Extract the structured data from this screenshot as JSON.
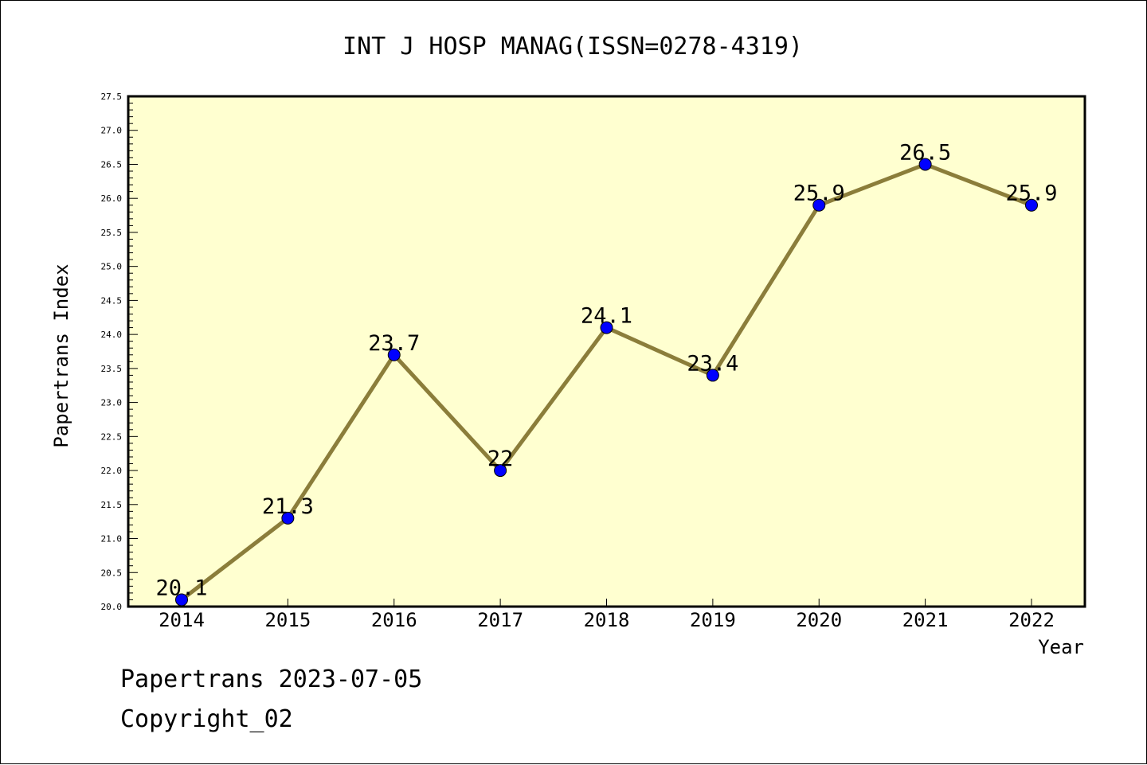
{
  "chart_data": {
    "type": "line",
    "title": "INT J HOSP MANAG(ISSN=0278-4319)",
    "xlabel": "Year",
    "ylabel": "Papertrans Index",
    "categories": [
      "2014",
      "2015",
      "2016",
      "2017",
      "2018",
      "2019",
      "2020",
      "2021",
      "2022"
    ],
    "series": [
      {
        "values": [
          20.1,
          21.3,
          23.7,
          22,
          24.1,
          23.4,
          25.9,
          26.5,
          25.9
        ]
      }
    ],
    "data_labels": [
      "20.1",
      "21.3",
      "23.7",
      "22",
      "24.1",
      "23.4",
      "25.9",
      "26.5",
      "25.9"
    ],
    "ylim": [
      20.0,
      27.5
    ],
    "yticks": [
      "20.0",
      "20.5",
      "21.0",
      "21.5",
      "22.0",
      "22.5",
      "23.0",
      "23.5",
      "24.0",
      "24.5",
      "25.0",
      "25.5",
      "26.0",
      "26.5",
      "27.0",
      "27.5"
    ],
    "grid": false,
    "legend": "none",
    "colors": {
      "plot_background": "#ffffd0",
      "line": "#8b7d3a",
      "marker": "#0000ff"
    }
  },
  "footer": {
    "line1": "Papertrans 2023-07-05",
    "line2": "Copyright_02"
  }
}
